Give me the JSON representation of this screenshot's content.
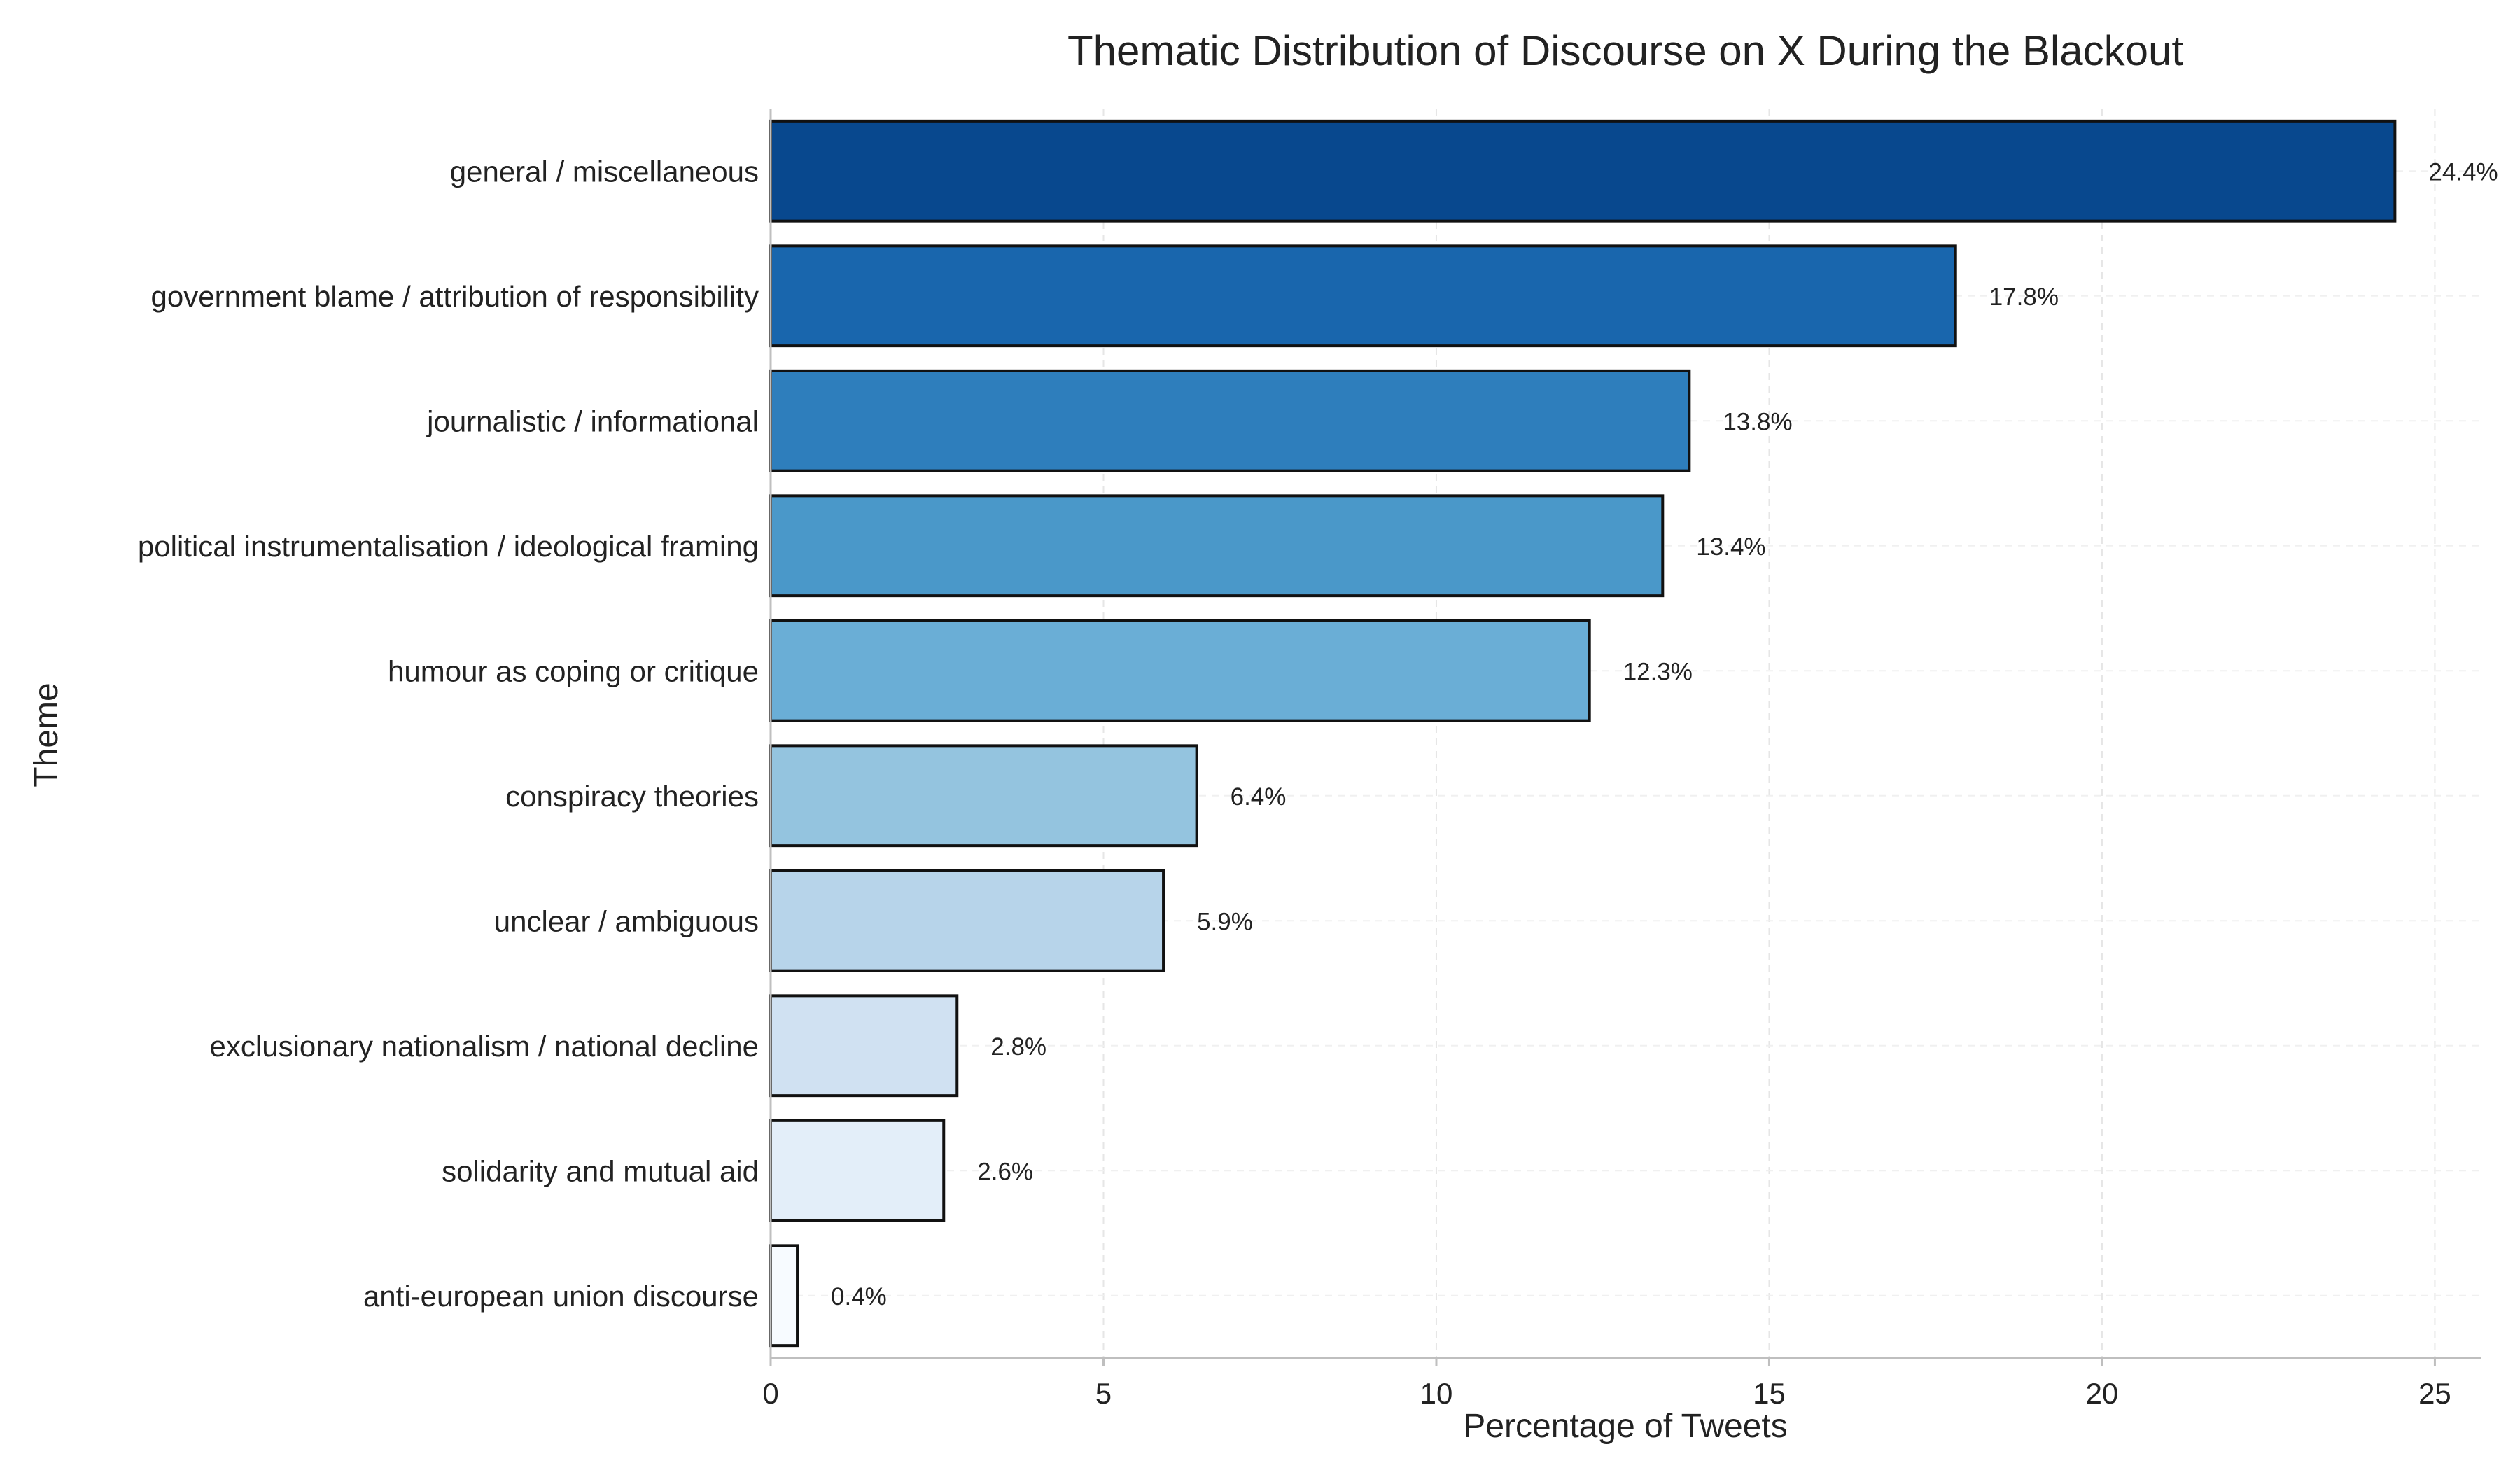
{
  "chart_data": {
    "type": "bar",
    "orientation": "horizontal",
    "title": "Thematic Distribution of Discourse on X During the Blackout",
    "xlabel": "Percentage of Tweets",
    "ylabel": "Theme",
    "xlim": [
      0,
      25.7
    ],
    "xticks": [
      0,
      5,
      10,
      15,
      20,
      25
    ],
    "grid": true,
    "categories": [
      "general / miscellaneous",
      "government blame / attribution of responsibility",
      "journalistic / informational",
      "political instrumentalisation / ideological framing",
      "humour as coping or critique",
      "conspiracy theories",
      "unclear / ambiguous",
      "exclusionary nationalism / national decline",
      "solidarity and mutual aid",
      "anti-european union discourse"
    ],
    "values": [
      24.4,
      17.8,
      13.8,
      13.4,
      12.3,
      6.4,
      5.9,
      2.8,
      2.6,
      0.4
    ],
    "value_labels": [
      "24.4%",
      "17.8%",
      "13.8%",
      "13.4%",
      "12.3%",
      "6.4%",
      "5.9%",
      "2.8%",
      "2.6%",
      "0.4%"
    ],
    "colors": [
      "#08488e",
      "#1966ad",
      "#2e7ebc",
      "#4a98c9",
      "#6aaed6",
      "#94c4df",
      "#b7d4ea",
      "#d0e1f2",
      "#e3eef9",
      "#f7fbff"
    ],
    "bar_edge_color": "#111111"
  }
}
